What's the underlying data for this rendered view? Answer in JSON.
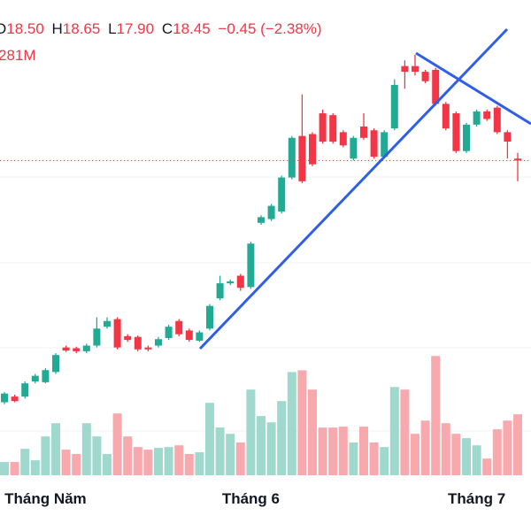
{
  "legend": {
    "items": [
      {
        "key": "O",
        "value": "18.50"
      },
      {
        "key": "H",
        "value": "18.65"
      },
      {
        "key": "L",
        "value": "17.90"
      },
      {
        "key": "C",
        "value": "18.45"
      }
    ],
    "change": "−0.45 (−2.38%)",
    "volume": "281M"
  },
  "chart_data": {
    "type": "candlestick",
    "categories": [
      null,
      null,
      null,
      null,
      "Tháng Năm",
      null,
      null,
      null,
      null,
      null,
      null,
      null,
      null,
      null,
      null,
      null,
      null,
      null,
      null,
      null,
      null,
      null,
      null,
      null,
      "Tháng 6",
      null,
      null,
      null,
      null,
      null,
      null,
      null,
      null,
      null,
      null,
      null,
      null,
      null,
      null,
      null,
      null,
      null,
      null,
      null,
      null,
      null,
      "Tháng 7",
      null,
      null,
      null,
      null
    ],
    "open": [
      12.05,
      12.2,
      12.2,
      12.6,
      12.58,
      12.85,
      13.5,
      13.48,
      13.4,
      13.55,
      14.05,
      14.25,
      13.8,
      13.78,
      13.5,
      13.55,
      13.75,
      14.2,
      13.95,
      13.68,
      14.0,
      14.8,
      15.2,
      15.4,
      15.1,
      16.8,
      16.9,
      17.1,
      18.0,
      19.1,
      19.15,
      19.7,
      19.65,
      19.2,
      18.5,
      19.35,
      19.25,
      18.55,
      19.3,
      20.95,
      20.95,
      20.8,
      20.85,
      19.95,
      19.7,
      18.7,
      19.4,
      19.75,
      19.85,
      19.2,
      18.5
    ],
    "high": [
      12.32,
      12.25,
      12.6,
      12.8,
      12.95,
      13.35,
      13.55,
      13.52,
      13.6,
      14.3,
      14.3,
      14.3,
      13.85,
      13.82,
      13.55,
      13.78,
      14.1,
      14.25,
      14.0,
      13.95,
      14.65,
      15.4,
      15.3,
      15.45,
      16.3,
      17.0,
      17.3,
      18.05,
      19.1,
      20.2,
      19.2,
      19.8,
      19.7,
      19.25,
      19.1,
      19.7,
      19.3,
      19.25,
      20.6,
      21.1,
      21.25,
      20.85,
      20.9,
      20.0,
      19.75,
      19.45,
      19.8,
      19.8,
      19.9,
      19.25,
      18.65
    ],
    "low": [
      12.0,
      12.05,
      12.15,
      12.55,
      12.55,
      12.8,
      13.38,
      13.35,
      13.35,
      13.5,
      14.0,
      13.45,
      13.65,
      13.4,
      13.4,
      13.5,
      13.7,
      13.8,
      13.65,
      13.65,
      13.95,
      14.75,
      15.15,
      15.0,
      15.05,
      16.75,
      16.85,
      17.05,
      17.95,
      17.85,
      18.3,
      18.9,
      18.9,
      18.8,
      18.45,
      19.0,
      18.5,
      18.5,
      19.25,
      20.35,
      20.7,
      20.5,
      19.9,
      19.25,
      18.65,
      18.65,
      19.35,
      19.5,
      19.15,
      18.5,
      17.9
    ],
    "close": [
      12.28,
      12.08,
      12.55,
      12.75,
      12.9,
      13.3,
      13.42,
      13.4,
      13.55,
      14.0,
      14.2,
      13.5,
      13.7,
      13.45,
      13.45,
      13.72,
      14.05,
      13.85,
      13.7,
      13.9,
      14.6,
      15.2,
      15.25,
      15.08,
      16.25,
      16.95,
      17.25,
      18.0,
      19.05,
      17.9,
      18.35,
      18.95,
      18.95,
      18.85,
      19.05,
      19.05,
      18.55,
      19.2,
      20.45,
      20.8,
      20.8,
      20.55,
      19.95,
      19.3,
      18.7,
      19.4,
      19.75,
      19.55,
      19.2,
      18.95,
      18.45
    ],
    "volume": [
      61,
      61,
      122,
      69,
      179,
      240,
      118,
      98,
      240,
      179,
      98,
      285,
      179,
      130,
      118,
      126,
      130,
      138,
      98,
      106,
      334,
      220,
      191,
      151,
      395,
      273,
      244,
      342,
      476,
      484,
      395,
      220,
      220,
      224,
      151,
      224,
      151,
      130,
      407,
      395,
      191,
      252,
      550,
      240,
      191,
      171,
      138,
      77,
      212,
      252,
      281
    ],
    "ylim": [
      10,
      22.7
    ],
    "volume_ylim": [
      0,
      600
    ],
    "up_color": "#22ab94",
    "down_color": "#f23645",
    "volume_up_color": "#9fd8cc",
    "volume_down_color": "#f7a9ae"
  }
}
